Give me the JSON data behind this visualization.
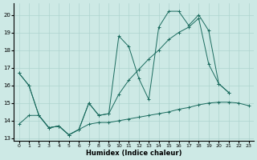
{
  "xlabel": "Humidex (Indice chaleur)",
  "xlim": [
    -0.5,
    23.5
  ],
  "ylim": [
    12.85,
    20.65
  ],
  "yticks": [
    13,
    14,
    15,
    16,
    17,
    18,
    19,
    20
  ],
  "xticks": [
    0,
    1,
    2,
    3,
    4,
    5,
    6,
    7,
    8,
    9,
    10,
    11,
    12,
    13,
    14,
    15,
    16,
    17,
    18,
    19,
    20,
    21,
    22,
    23
  ],
  "bg_color": "#cde9e5",
  "line_color": "#1a6b5e",
  "grid_color": "#aed4cf",
  "series1_y": [
    16.7,
    16.0,
    14.3,
    13.6,
    13.7,
    13.2,
    13.5,
    15.0,
    14.3,
    14.4,
    18.8,
    18.2,
    16.4,
    15.2,
    19.3,
    20.2,
    20.2,
    19.4,
    20.0,
    19.1,
    16.1,
    15.6,
    null,
    null
  ],
  "series2_y": [
    16.7,
    16.0,
    14.3,
    13.6,
    13.7,
    13.2,
    13.5,
    15.0,
    14.3,
    14.4,
    15.5,
    16.3,
    16.9,
    17.5,
    18.0,
    18.6,
    19.0,
    19.3,
    19.8,
    17.2,
    16.1,
    15.6,
    null,
    null
  ],
  "series3_y": [
    13.8,
    14.3,
    14.3,
    13.6,
    13.7,
    13.2,
    13.5,
    13.8,
    13.9,
    13.9,
    14.0,
    14.1,
    14.2,
    14.3,
    14.4,
    14.5,
    14.65,
    14.75,
    14.9,
    15.0,
    15.05,
    15.05,
    15.0,
    14.85
  ]
}
